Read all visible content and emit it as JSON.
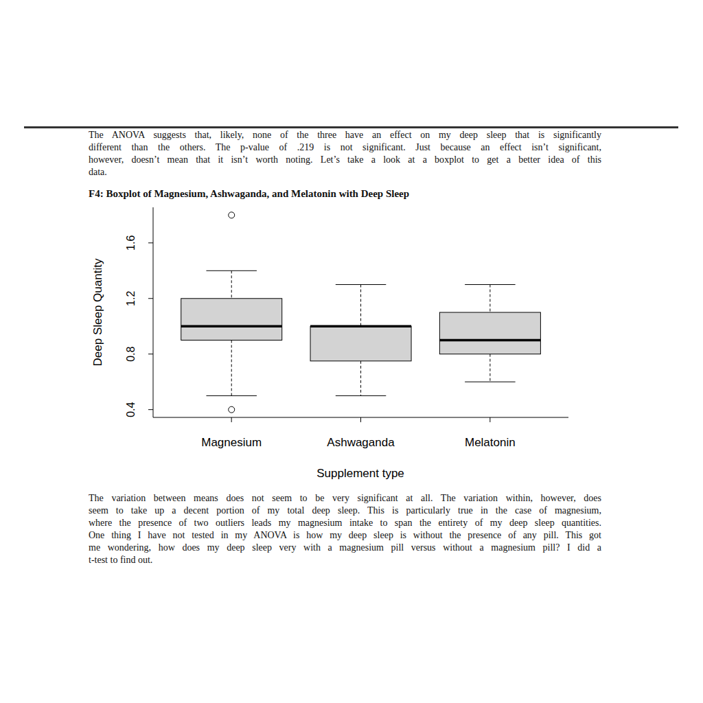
{
  "document": {
    "paragraphs_before": [
      [
        "The ANOVA suggests that, likely, none of the three have an effect on my deep sleep that is significantly",
        "different than the others. The p-value of .219 is not significant. Just because an effect isn’t significant,",
        "however, doesn’t mean that it isn’t worth noting. Let’s take a look at a boxplot to get a better idea of this",
        "data."
      ]
    ],
    "figure_caption": "F4: Boxplot of Magnesium, Ashwaganda, and Melatonin with Deep Sleep",
    "paragraphs_after": [
      [
        "The variation between means does not seem to be very significant at all. The variation within, however, does",
        "seem to take up a decent portion of my total deep sleep. This is particularly true in the case of magnesium,",
        "where the presence of two outliers leads my magnesium intake to span the entirety of my deep sleep quantities.",
        "One thing I have not tested in my ANOVA is how my deep sleep is without the presence of any pill. This got",
        "me wondering, how does my deep sleep very with a magnesium pill versus without a magnesium pill? I did a",
        "t-test to find out."
      ]
    ]
  },
  "chart_data": {
    "type": "boxplot",
    "categories": [
      "Magnesium",
      "Ashwaganda",
      "Melatonin"
    ],
    "boxes": [
      {
        "min": 0.5,
        "q1": 0.9,
        "median": 1.0,
        "q3": 1.2,
        "max": 1.4,
        "outliers": [
          0.4,
          1.8
        ]
      },
      {
        "min": 0.5,
        "q1": 0.75,
        "median": 1.0,
        "q3": 1.0,
        "max": 1.3,
        "outliers": []
      },
      {
        "min": 0.6,
        "q1": 0.8,
        "median": 0.9,
        "q3": 1.1,
        "max": 1.3,
        "outliers": []
      }
    ],
    "color": "#d3d3d3",
    "ylim": [
      0.344,
      1.856
    ],
    "yticks": [
      0.4,
      0.8,
      1.2,
      1.6
    ],
    "x_label": "Supplement type",
    "y_label": "Deep Sleep Quantity",
    "grid": false
  }
}
